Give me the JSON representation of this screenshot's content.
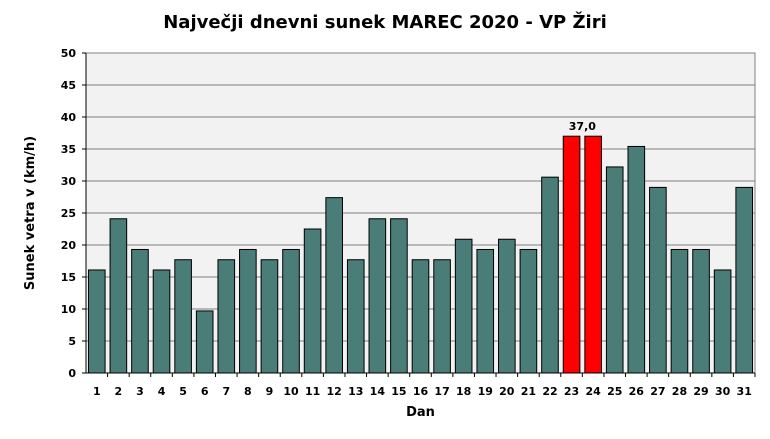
{
  "chart_data": {
    "type": "bar",
    "title": "Največji dnevni sunek MAREC 2020 - VP Žiri",
    "xlabel": "Dan",
    "ylabel": "Sunek vetra  v (km/h)",
    "ylim": [
      0,
      50
    ],
    "yticks": [
      "0",
      "5",
      "10",
      "15",
      "20",
      "25",
      "30",
      "35",
      "40",
      "45",
      "50"
    ],
    "categories": [
      "1",
      "2",
      "3",
      "4",
      "5",
      "6",
      "7",
      "8",
      "9",
      "10",
      "11",
      "12",
      "13",
      "14",
      "15",
      "16",
      "17",
      "18",
      "19",
      "20",
      "21",
      "22",
      "23",
      "24",
      "25",
      "26",
      "27",
      "28",
      "29",
      "30",
      "31"
    ],
    "values": [
      16.1,
      24.1,
      19.3,
      16.1,
      17.7,
      9.7,
      17.7,
      19.3,
      17.7,
      19.3,
      22.5,
      27.4,
      17.7,
      24.1,
      24.1,
      17.7,
      17.7,
      20.9,
      19.3,
      20.9,
      19.3,
      30.6,
      37.0,
      37.0,
      32.2,
      35.4,
      29.0,
      19.3,
      19.3,
      16.1,
      29.0
    ],
    "highlight_indices": [
      22,
      23
    ],
    "data_labels": [
      {
        "index": 22,
        "text": "37,0"
      }
    ],
    "grid": true,
    "colors": {
      "bar": "#4a7c78",
      "highlight": "#ff0000",
      "plot_bg": "#f2f2f2",
      "grid": "#808080"
    }
  }
}
